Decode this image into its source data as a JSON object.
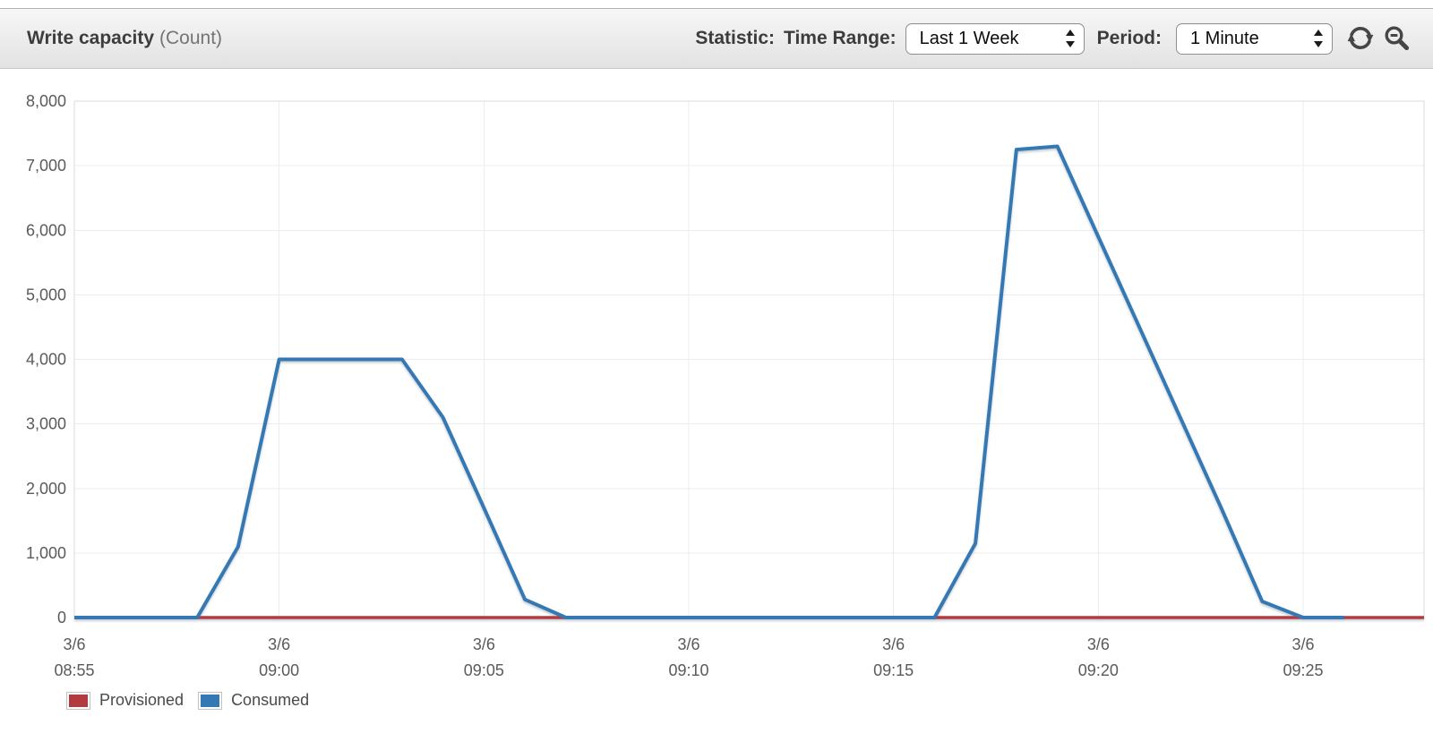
{
  "header": {
    "title": "Write capacity",
    "title_suffix": "(Count)",
    "statistic_label": "Statistic:",
    "time_range_label": "Time Range:",
    "time_range_value": "Last 1 Week",
    "period_label": "Period:",
    "period_value": "1 Minute",
    "refresh_icon": "refresh",
    "zoom_out_icon": "zoom-out"
  },
  "chart_data": {
    "type": "line",
    "title": "Write capacity",
    "units": "Count",
    "grid": true,
    "legend_position": "bottom-left",
    "x_axis": {
      "date_label": "3/6",
      "tick_times": [
        "08:55",
        "09:00",
        "09:05",
        "09:10",
        "09:15",
        "09:20",
        "09:25"
      ],
      "tick_interval_minutes": 5,
      "domain_start": "08:55",
      "domain_end": "09:28",
      "period_minutes": 1
    },
    "y_axis": {
      "min": 0,
      "max": 8000,
      "step": 1000,
      "tick_labels": [
        "0",
        "1,000",
        "2,000",
        "3,000",
        "4,000",
        "5,000",
        "6,000",
        "7,000",
        "8,000"
      ]
    },
    "series": [
      {
        "name": "Provisioned",
        "color": "#b23b40",
        "points": [
          [
            "08:55",
            0
          ],
          [
            "09:28",
            0
          ]
        ]
      },
      {
        "name": "Consumed",
        "color": "#3579b4",
        "points": [
          [
            "08:55",
            0
          ],
          [
            "08:56",
            0
          ],
          [
            "08:57",
            0
          ],
          [
            "08:58",
            0
          ],
          [
            "08:59",
            1100
          ],
          [
            "09:00",
            4000
          ],
          [
            "09:01",
            4000
          ],
          [
            "09:02",
            4000
          ],
          [
            "09:03",
            4000
          ],
          [
            "09:04",
            3100
          ],
          [
            "09:05",
            1700
          ],
          [
            "09:06",
            280
          ],
          [
            "09:07",
            0
          ],
          [
            "09:08",
            0
          ],
          [
            "09:09",
            0
          ],
          [
            "09:10",
            0
          ],
          [
            "09:11",
            0
          ],
          [
            "09:12",
            0
          ],
          [
            "09:13",
            0
          ],
          [
            "09:14",
            0
          ],
          [
            "09:15",
            0
          ],
          [
            "09:16",
            0
          ],
          [
            "09:17",
            1150
          ],
          [
            "09:18",
            7250
          ],
          [
            "09:19",
            7300
          ],
          [
            "09:20",
            5900
          ],
          [
            "09:21",
            4500
          ],
          [
            "09:22",
            3100
          ],
          [
            "09:23",
            1700
          ],
          [
            "09:24",
            250
          ],
          [
            "09:25",
            0
          ],
          [
            "09:26",
            0
          ]
        ]
      }
    ]
  }
}
